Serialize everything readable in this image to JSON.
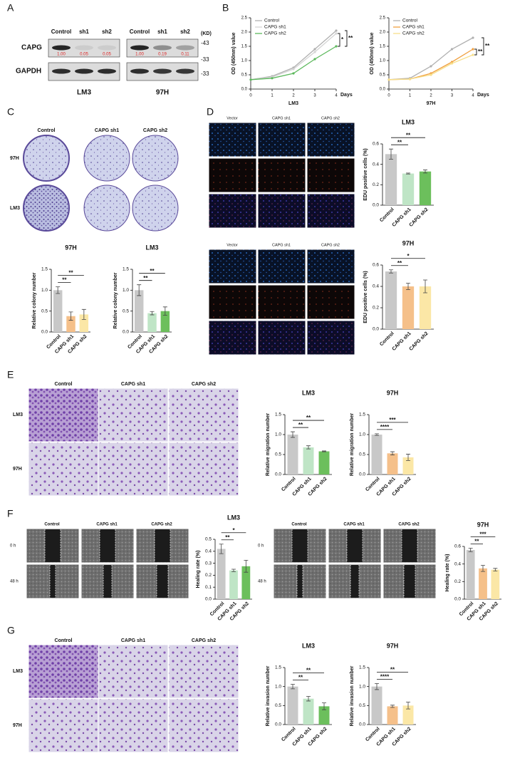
{
  "figure": {
    "panel_labels": [
      "A",
      "B",
      "C",
      "D",
      "E",
      "F",
      "G"
    ],
    "blot": {
      "lanes": [
        "Control",
        "sh1",
        "sh2"
      ],
      "proteins": [
        "CAPG",
        "GAPDH"
      ],
      "unit": "(KD)",
      "markers": [
        "-43",
        "-33",
        "-33"
      ],
      "cell_lines": [
        "LM3",
        "97H"
      ],
      "ratios": [
        [
          "1.00",
          "0.05",
          "0.05"
        ],
        [
          "1.00",
          "0.19",
          "0.11"
        ]
      ]
    },
    "colony": {
      "columns": [
        "Control",
        "CAPG sh1",
        "CAPG sh2"
      ],
      "rows": [
        "97H",
        "LM3"
      ]
    },
    "edu": {
      "columns": [
        "Vector",
        "CAPG sh1",
        "CAPG sh2"
      ]
    },
    "migration": {
      "columns": [
        "Control",
        "CAPG sh1",
        "CAPG sh2"
      ],
      "rows": [
        "LM3",
        "97H"
      ]
    },
    "wound": {
      "columns": [
        "Control",
        "CAPG sh1",
        "CAPG sh2"
      ],
      "rows": [
        "0 h",
        "48 h"
      ]
    },
    "invasion": {
      "columns": [
        "Control",
        "CAPG sh1",
        "CAPG sh2"
      ],
      "rows": [
        "LM3",
        "97H"
      ]
    }
  },
  "chart_data": [
    {
      "type": "line",
      "title": "LM3",
      "xlabel": "Days",
      "ylabel": "OD (450nm) value",
      "x": [
        0,
        1,
        2,
        3,
        4
      ],
      "xlim": [
        0,
        4
      ],
      "xticks": [
        0,
        1,
        2,
        3,
        4
      ],
      "ylim": [
        0,
        2.5
      ],
      "yticks": [
        {
          "value": 0,
          "label": "0.0"
        },
        0.5,
        {
          "value": 1,
          "label": "1.0"
        },
        1.5,
        {
          "value": 2,
          "label": "2.0"
        },
        2.5
      ],
      "series": [
        {
          "name": "Control",
          "color": "#b0b0b0",
          "values": [
            0.33,
            0.45,
            0.75,
            1.4,
            2.05
          ]
        },
        {
          "name": "CAPG sh1",
          "color": "#d4d4d4",
          "values": [
            0.33,
            0.42,
            0.7,
            1.3,
            1.95
          ]
        },
        {
          "name": "CAPG sh2",
          "color": "#5cb85c",
          "values": [
            0.33,
            0.38,
            0.55,
            1.05,
            1.5
          ]
        }
      ],
      "annotations": [
        "*",
        "**"
      ]
    },
    {
      "type": "line",
      "title": "97H",
      "xlabel": "Days",
      "ylabel": "OD (450nm) value",
      "x": [
        0,
        1,
        2,
        3,
        4
      ],
      "xlim": [
        0,
        4
      ],
      "xticks": [
        0,
        1,
        2,
        3,
        4
      ],
      "ylim": [
        0,
        2.5
      ],
      "yticks": [
        {
          "value": 0,
          "label": "0.0"
        },
        0.5,
        {
          "value": 1,
          "label": "1.0"
        },
        1.5,
        {
          "value": 2,
          "label": "2.0"
        },
        2.5
      ],
      "series": [
        {
          "name": "Control",
          "color": "#b0b0b0",
          "values": [
            0.33,
            0.38,
            0.8,
            1.4,
            1.8
          ]
        },
        {
          "name": "CAPG sh1",
          "color": "#f0a040",
          "values": [
            0.33,
            0.35,
            0.55,
            0.95,
            1.4
          ]
        },
        {
          "name": "CAPG sh2",
          "color": "#f7df8a",
          "values": [
            0.33,
            0.35,
            0.5,
            0.9,
            1.2
          ]
        }
      ],
      "annotations": [
        "**",
        "**"
      ]
    },
    {
      "type": "bar",
      "title": "97H",
      "ylabel": "Relative colony number",
      "categories": [
        "Control",
        "CAPG sh1",
        "CAPG sh2"
      ],
      "values": [
        1.0,
        0.38,
        0.42
      ],
      "errors": [
        0.08,
        0.1,
        0.12
      ],
      "colors": [
        "#c8c8c8",
        "#f5c08a",
        "#fbe7a6"
      ],
      "ylim": [
        0,
        1.5
      ],
      "yticks": [
        {
          "value": 0,
          "label": "0.0"
        },
        0.5,
        {
          "value": 1,
          "label": "1.0"
        },
        1.5
      ],
      "annotations": [
        "**",
        "**"
      ]
    },
    {
      "type": "bar",
      "title": "LM3",
      "ylabel": "Relative colony number",
      "categories": [
        "Control",
        "CAPG sh1",
        "CAPG sh2"
      ],
      "values": [
        1.0,
        0.45,
        0.5
      ],
      "errors": [
        0.13,
        0.04,
        0.1
      ],
      "colors": [
        "#c8c8c8",
        "#bfe5c6",
        "#6cbf5c"
      ],
      "ylim": [
        0,
        1.5
      ],
      "yticks": [
        {
          "value": 0,
          "label": "0.0"
        },
        0.5,
        {
          "value": 1,
          "label": "1.0"
        },
        1.5
      ],
      "annotations": [
        "**",
        "**"
      ]
    },
    {
      "type": "bar",
      "title": "LM3",
      "ylabel": "EDU positive cells (%)",
      "categories": [
        "Control",
        "CAPG sh1",
        "CAPG sh2"
      ],
      "values": [
        0.5,
        0.31,
        0.33
      ],
      "errors": [
        0.05,
        0.005,
        0.015
      ],
      "colors": [
        "#c8c8c8",
        "#bfe5c6",
        "#6cbf5c"
      ],
      "ylim": [
        0,
        0.6
      ],
      "yticks": [
        {
          "value": 0,
          "label": "0.0"
        },
        0.2,
        0.4,
        0.6
      ],
      "annotations": [
        "**",
        "**"
      ]
    },
    {
      "type": "bar",
      "title": "97H",
      "ylabel": "EDU positive cells (%)",
      "categories": [
        "Control",
        "CAPG sh1",
        "CAPG sh2"
      ],
      "values": [
        0.54,
        0.4,
        0.4
      ],
      "errors": [
        0.015,
        0.03,
        0.06
      ],
      "colors": [
        "#c8c8c8",
        "#f5c08a",
        "#fbe7a6"
      ],
      "ylim": [
        0,
        0.6
      ],
      "yticks": [
        {
          "value": 0,
          "label": "0.0"
        },
        0.2,
        0.4,
        0.6
      ],
      "annotations": [
        "**",
        "*"
      ]
    },
    {
      "type": "bar",
      "title": "LM3",
      "ylabel": "Relative migration number",
      "categories": [
        "Control",
        "CAPG sh1",
        "CAPG sh2"
      ],
      "values": [
        1.0,
        0.68,
        0.58
      ],
      "errors": [
        0.07,
        0.04,
        0.01
      ],
      "colors": [
        "#c8c8c8",
        "#bfe5c6",
        "#6cbf5c"
      ],
      "ylim": [
        0,
        1.5
      ],
      "yticks": [
        {
          "value": 0,
          "label": "0.0"
        },
        0.5,
        {
          "value": 1,
          "label": "1.0"
        },
        1.5
      ],
      "annotations": [
        "**",
        "**"
      ]
    },
    {
      "type": "bar",
      "title": "97H",
      "ylabel": "Relative migration number",
      "categories": [
        "Control",
        "CAPG sh1",
        "CAPG sh2"
      ],
      "values": [
        1.0,
        0.53,
        0.43
      ],
      "errors": [
        0.02,
        0.04,
        0.08
      ],
      "colors": [
        "#c8c8c8",
        "#f5c08a",
        "#fbe7a6"
      ],
      "ylim": [
        0,
        1.5
      ],
      "yticks": [
        {
          "value": 0,
          "label": "0.0"
        },
        0.5,
        {
          "value": 1,
          "label": "1.0"
        },
        1.5
      ],
      "annotations": [
        "****",
        "***"
      ]
    },
    {
      "type": "bar",
      "title": "LM3",
      "ylabel": "Healing rate (%)",
      "categories": [
        "Control",
        "CAPG sh1",
        "CAPG sh2"
      ],
      "values": [
        0.42,
        0.24,
        0.275
      ],
      "errors": [
        0.04,
        0.01,
        0.05
      ],
      "colors": [
        "#c8c8c8",
        "#bfe5c6",
        "#6cbf5c"
      ],
      "ylim": [
        0,
        0.5
      ],
      "yticks": [
        {
          "value": 0,
          "label": "0.0"
        },
        0.1,
        0.2,
        0.3,
        0.4,
        0.5
      ],
      "annotations": [
        "**",
        "*"
      ]
    },
    {
      "type": "bar",
      "title": "97H",
      "ylabel": "Healing rate (%)",
      "categories": [
        "Control",
        "CAPG sh1",
        "CAPG sh2"
      ],
      "values": [
        0.56,
        0.35,
        0.335
      ],
      "errors": [
        0.02,
        0.035,
        0.015
      ],
      "colors": [
        "#c8c8c8",
        "#f5c08a",
        "#fbe7a6"
      ],
      "ylim": [
        0,
        0.6
      ],
      "yticks": [
        {
          "value": 0,
          "label": "0.0"
        },
        0.2,
        0.4,
        0.6
      ],
      "annotations": [
        "**",
        "***"
      ]
    },
    {
      "type": "bar",
      "title": "LM3",
      "ylabel": "Relative invasion number",
      "categories": [
        "Control",
        "CAPG sh1",
        "CAPG sh2"
      ],
      "values": [
        1.0,
        0.68,
        0.48
      ],
      "errors": [
        0.06,
        0.06,
        0.09
      ],
      "colors": [
        "#c8c8c8",
        "#bfe5c6",
        "#6cbf5c"
      ],
      "ylim": [
        0,
        1.5
      ],
      "yticks": [
        {
          "value": 0,
          "label": "0.0"
        },
        0.5,
        {
          "value": 1,
          "label": "1.0"
        },
        1.5
      ],
      "annotations": [
        "**",
        "**"
      ]
    },
    {
      "type": "bar",
      "title": "97H",
      "ylabel": "Relative invasion number",
      "categories": [
        "Control",
        "CAPG sh1",
        "CAPG sh2"
      ],
      "values": [
        1.0,
        0.48,
        0.5
      ],
      "errors": [
        0.08,
        0.03,
        0.09
      ],
      "colors": [
        "#c8c8c8",
        "#f5c08a",
        "#fbe7a6"
      ],
      "ylim": [
        0,
        1.5
      ],
      "yticks": [
        {
          "value": 0,
          "label": "0.0"
        },
        0.5,
        {
          "value": 1,
          "label": "1.0"
        },
        1.5
      ],
      "annotations": [
        "****",
        "**"
      ]
    }
  ]
}
